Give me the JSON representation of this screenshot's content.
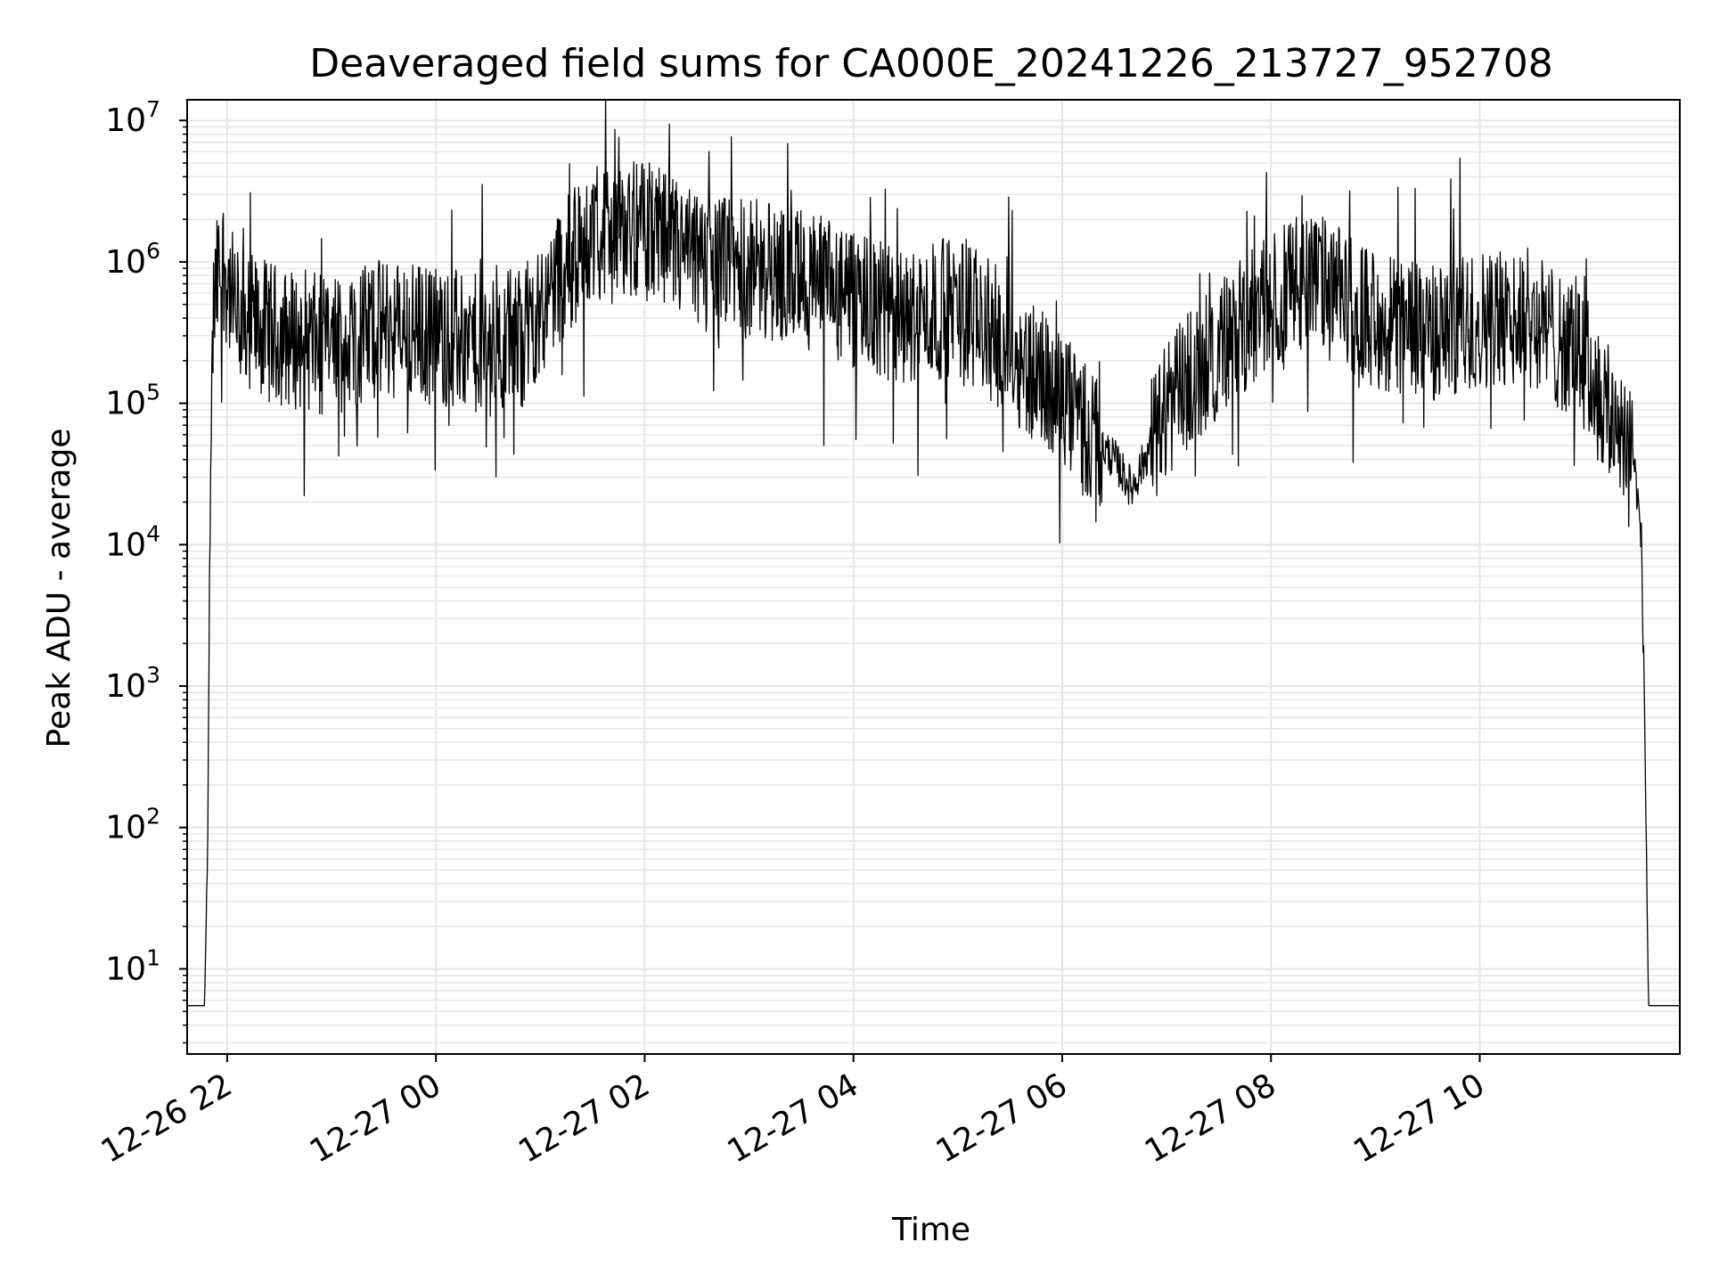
{
  "chart_data": {
    "type": "line",
    "title": "Deaveraged field sums for CA000E_20241226_213727_952708",
    "xlabel": "Time",
    "ylabel": "Peak ADU - average",
    "y_scale": "log",
    "ylim": [
      2.5,
      14000000
    ],
    "xlim": [
      "12-26 21:37",
      "12-27 11:55"
    ],
    "grid": true,
    "colors": {
      "line": "#000000",
      "grid": "#e6e6e6",
      "axis": "#000000"
    },
    "x_ticks": [
      {
        "time": "12-26 22:00",
        "label": "12-26 22"
      },
      {
        "time": "12-27 00:00",
        "label": "12-27 00"
      },
      {
        "time": "12-27 02:00",
        "label": "12-27 02"
      },
      {
        "time": "12-27 04:00",
        "label": "12-27 04"
      },
      {
        "time": "12-27 06:00",
        "label": "12-27 06"
      },
      {
        "time": "12-27 08:00",
        "label": "12-27 08"
      },
      {
        "time": "12-27 10:00",
        "label": "12-27 10"
      }
    ],
    "y_ticks": [
      {
        "value": 10,
        "base": "10",
        "exp": "1"
      },
      {
        "value": 100,
        "base": "10",
        "exp": "2"
      },
      {
        "value": 1000,
        "base": "10",
        "exp": "3"
      },
      {
        "value": 10000,
        "base": "10",
        "exp": "4"
      },
      {
        "value": 100000,
        "base": "10",
        "exp": "5"
      },
      {
        "value": 1000000,
        "base": "10",
        "exp": "6"
      },
      {
        "value": 10000000,
        "base": "10",
        "exp": "7"
      }
    ],
    "series": [
      {
        "name": "",
        "x": [
          "12-26 21:37",
          "12-26 21:47",
          "12-26 21:49",
          "12-26 21:50",
          "12-26 21:52",
          "12-26 21:55",
          "12-26 21:58",
          "12-26 22:05",
          "12-26 22:30",
          "12-26 23:00",
          "12-26 23:30",
          "12-27 00:00",
          "12-27 00:30",
          "12-27 00:50",
          "12-27 01:10",
          "12-27 01:30",
          "12-27 02:00",
          "12-27 02:30",
          "12-27 03:00",
          "12-27 03:30",
          "12-27 04:00",
          "12-27 04:30",
          "12-27 05:00",
          "12-27 05:30",
          "12-27 06:00",
          "12-27 06:30",
          "12-27 06:40",
          "12-27 07:00",
          "12-27 07:30",
          "12-27 08:00",
          "12-27 08:20",
          "12-27 09:00",
          "12-27 09:30",
          "12-27 10:00",
          "12-27 10:30",
          "12-27 11:00",
          "12-27 11:15",
          "12-27 11:27",
          "12-27 11:31",
          "12-27 11:33",
          "12-27 11:35",
          "12-27 11:37",
          "12-27 11:55"
        ],
        "y": [
          5.5,
          5.5,
          100,
          10000,
          400000,
          800000,
          1000000,
          400000,
          300000,
          250000,
          350000,
          300000,
          250000,
          300000,
          800000,
          1500000,
          1700000,
          1000000,
          900000,
          800000,
          500000,
          400000,
          500000,
          250000,
          100000,
          40000,
          25000,
          90000,
          250000,
          500000,
          800000,
          400000,
          300000,
          400000,
          400000,
          200000,
          80000,
          60000,
          20000,
          10000,
          400,
          5.5,
          5.5
        ]
      }
    ]
  }
}
